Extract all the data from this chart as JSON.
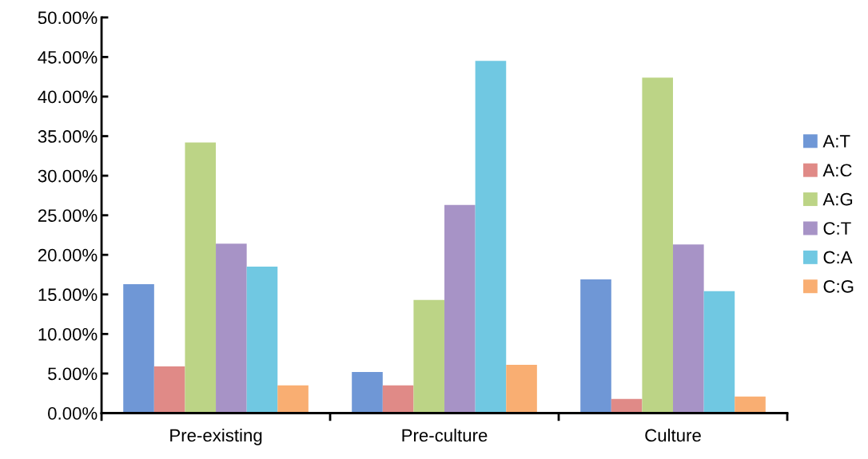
{
  "chart_data": {
    "type": "bar",
    "categories": [
      "Pre-existing",
      "Pre-culture",
      "Culture"
    ],
    "series": [
      {
        "name": "A:T",
        "color": "#6f97d6",
        "values": [
          16.3,
          5.2,
          16.9
        ]
      },
      {
        "name": "A:C",
        "color": "#e08a87",
        "values": [
          5.9,
          3.5,
          1.8
        ]
      },
      {
        "name": "A:G",
        "color": "#bcd486",
        "values": [
          34.2,
          14.3,
          42.4
        ]
      },
      {
        "name": "C:T",
        "color": "#a793c6",
        "values": [
          21.4,
          26.3,
          21.3
        ]
      },
      {
        "name": "C:A",
        "color": "#70c8e2",
        "values": [
          18.5,
          44.5,
          15.4
        ]
      },
      {
        "name": "C:G",
        "color": "#f9ae72",
        "values": [
          3.5,
          6.1,
          2.1
        ]
      }
    ],
    "ylim": [
      0,
      50
    ],
    "yticks": [
      {
        "value": 0,
        "label": "0.00%"
      },
      {
        "value": 5,
        "label": "5.00%"
      },
      {
        "value": 10,
        "label": "10.00%"
      },
      {
        "value": 15,
        "label": "15.00%"
      },
      {
        "value": 20,
        "label": "20.00%"
      },
      {
        "value": 25,
        "label": "25.00%"
      },
      {
        "value": 30,
        "label": "30.00%"
      },
      {
        "value": 35,
        "label": "35.00%"
      },
      {
        "value": 40,
        "label": "40.00%"
      },
      {
        "value": 45,
        "label": "45.00%"
      },
      {
        "value": 50,
        "label": "50.00%"
      }
    ],
    "grid": false,
    "legend": "right"
  }
}
